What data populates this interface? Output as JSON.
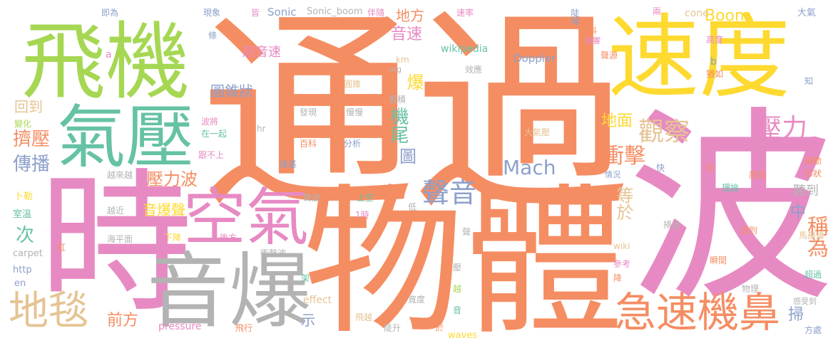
{
  "palette": {
    "orange": "#F58D62",
    "green": "#A6D753",
    "teal": "#66C2A5",
    "yellow": "#FED930",
    "pink": "#E78AC3",
    "gray": "#B3B3B3",
    "blue": "#8DA0CB",
    "tan": "#E5C494"
  },
  "words": [
    {
      "text": "通過",
      "color": "#F58D62"
    },
    {
      "text": "物體",
      "color": "#F58D62"
    },
    {
      "text": "波",
      "color": "#E78AC3"
    },
    {
      "text": "時",
      "color": "#E78AC3"
    },
    {
      "text": "飛機",
      "color": "#A6D753"
    },
    {
      "text": "速度",
      "color": "#FED930"
    },
    {
      "text": "氣壓",
      "color": "#66C2A5"
    },
    {
      "text": "音爆",
      "color": "#B3B3B3"
    },
    {
      "text": "空氣",
      "color": "#E78AC3"
    },
    {
      "text": "地毯",
      "color": "#E5C494"
    },
    {
      "text": "急速機鼻",
      "color": "#F58D62"
    },
    {
      "text": "聲音",
      "color": "#8DA0CB"
    },
    {
      "text": "觀察",
      "color": "#E5C494"
    },
    {
      "text": "壓力",
      "color": "#E78AC3"
    },
    {
      "text": "衝擊",
      "color": "#F58D62"
    },
    {
      "text": "地面",
      "color": "#FED930"
    },
    {
      "text": "機尾",
      "color": "#66C2A5"
    },
    {
      "text": "Mach",
      "color": "#8DA0CB"
    },
    {
      "text": "壓力波",
      "color": "#F58D62"
    },
    {
      "text": "等於",
      "color": "#E5C494"
    },
    {
      "text": "稱為",
      "color": "#F58D62"
    },
    {
      "text": "傳播",
      "color": "#8DA0CB"
    },
    {
      "text": "擠壓",
      "color": "#F58D62"
    },
    {
      "text": "音速",
      "color": "#E78AC3"
    },
    {
      "text": "爆",
      "color": "#FED930"
    },
    {
      "text": "圖",
      "color": "#8DA0CB"
    },
    {
      "text": "Boom",
      "color": "#FED930"
    },
    {
      "text": "地方",
      "color": "#F58D62"
    },
    {
      "text": "前方",
      "color": "#F58D62"
    },
    {
      "text": "次",
      "color": "#66C2A5"
    },
    {
      "text": "回到",
      "color": "#E5C494"
    },
    {
      "text": "圓錐狀",
      "color": "#8DA0CB"
    },
    {
      "text": "超音速",
      "color": "#E78AC3"
    },
    {
      "text": "音爆聲",
      "color": "#FED930"
    },
    {
      "text": "中",
      "color": "#8DA0CB"
    },
    {
      "text": "聽到",
      "color": "#B3B3B3"
    },
    {
      "text": "掃",
      "color": "#8DA0CB"
    },
    {
      "text": "示",
      "color": "#8DA0CB"
    },
    {
      "text": "馬赫數",
      "color": "#F58D62"
    },
    {
      "text": "Doppler",
      "color": "#8DA0CB"
    },
    {
      "text": "Sonic",
      "color": "#8DA0CB"
    },
    {
      "text": "Sonic_boom",
      "color": "#B3B3B3"
    },
    {
      "text": "wikipedia",
      "color": "#66C2A5"
    },
    {
      "text": "cone",
      "color": "#E5C494"
    },
    {
      "text": "pressure",
      "color": "#E78AC3"
    },
    {
      "text": "effect",
      "color": "#E5C494"
    },
    {
      "text": "waves",
      "color": "#FED930"
    },
    {
      "text": "carpet",
      "color": "#B3B3B3"
    },
    {
      "text": "http",
      "color": "#8DA0CB"
    },
    {
      "text": "en",
      "color": "#8DA0CB"
    },
    {
      "text": "wiki",
      "color": "#E5C494"
    },
    {
      "text": "km",
      "color": "#E5C494"
    },
    {
      "text": "org",
      "color": "#B3B3B3"
    },
    {
      "text": "hr",
      "color": "#B3B3B3"
    },
    {
      "text": "a",
      "color": "#E78AC3"
    },
    {
      "text": "b",
      "color": "#8DA0CB"
    },
    {
      "text": "1時",
      "color": "#E78AC3"
    },
    {
      "text": "大氣",
      "color": "#8DA0CB"
    },
    {
      "text": "大氣壓",
      "color": "#E5C494"
    },
    {
      "text": "即為",
      "color": "#8DA0CB"
    },
    {
      "text": "現象",
      "color": "#8DA0CB"
    },
    {
      "text": "皆",
      "color": "#E78AC3"
    },
    {
      "text": "伴隨",
      "color": "#E78AC3"
    },
    {
      "text": "速率",
      "color": "#E78AC3"
    },
    {
      "text": "兩",
      "color": "#E78AC3"
    },
    {
      "text": "陡降",
      "color": "#8DA0CB"
    },
    {
      "text": "資料",
      "color": "#F58D62"
    },
    {
      "text": "聲響",
      "color": "#E78AC3"
    },
    {
      "text": "高度",
      "color": "#E78AC3"
    },
    {
      "text": "聲源",
      "color": "#F58D62"
    },
    {
      "text": "猶如",
      "color": "#F58D62"
    },
    {
      "text": "知",
      "color": "#8DA0CB"
    },
    {
      "text": "條",
      "color": "#8DA0CB"
    },
    {
      "text": "變化",
      "color": "#A6D753"
    },
    {
      "text": "波將",
      "color": "#E78AC3"
    },
    {
      "text": "在一起",
      "color": "#66C2A5"
    },
    {
      "text": "跟不上",
      "color": "#E78AC3"
    },
    {
      "text": "越來越",
      "color": "#B3B3B3"
    },
    {
      "text": "越近",
      "color": "#B3B3B3"
    },
    {
      "text": "卜勒",
      "color": "#FED930"
    },
    {
      "text": "室溫",
      "color": "#66C2A5"
    },
    {
      "text": "海平面",
      "color": "#B3B3B3"
    },
    {
      "text": "後方",
      "color": "#E78AC3"
    },
    {
      "text": "衝擊波",
      "color": "#B3B3B3"
    },
    {
      "text": "紅",
      "color": "#F58D62"
    },
    {
      "text": "架",
      "color": "#66C2A5"
    },
    {
      "text": "下降",
      "color": "#FED930"
    },
    {
      "text": "飛越",
      "color": "#E5C494"
    },
    {
      "text": "飛行",
      "color": "#F58D62"
    },
    {
      "text": "陡升",
      "color": "#B3B3B3"
    },
    {
      "text": "來自於",
      "color": "#F58D62"
    },
    {
      "text": "音",
      "color": "#66C2A5"
    },
    {
      "text": "越",
      "color": "#A6D753"
    },
    {
      "text": "壓",
      "color": "#B3B3B3"
    },
    {
      "text": "聲",
      "color": "#B3B3B3"
    },
    {
      "text": "寬度",
      "color": "#B3B3B3"
    },
    {
      "text": "聲波",
      "color": "#B3B3B3"
    },
    {
      "text": "上空",
      "color": "#66C2A5"
    },
    {
      "text": "低",
      "color": "#B3B3B3"
    },
    {
      "text": "圓錐",
      "color": "#E5C494"
    },
    {
      "text": "效應",
      "color": "#B3B3B3"
    },
    {
      "text": "累積",
      "color": "#B3B3B3"
    },
    {
      "text": "慢慢",
      "color": "#B3B3B3"
    },
    {
      "text": "發現",
      "color": "#B3B3B3"
    },
    {
      "text": "百科",
      "color": "#F58D62"
    },
    {
      "text": "分析",
      "color": "#8DA0CB"
    },
    {
      "text": "維基",
      "color": "#8DA0CB"
    },
    {
      "text": "情況",
      "color": "#8DA0CB"
    },
    {
      "text": "快",
      "color": "#8DA0CB"
    },
    {
      "text": "前",
      "color": "#F58D62"
    },
    {
      "text": "原因",
      "color": "#F58D62"
    },
    {
      "text": "理論",
      "color": "#66C2A5"
    },
    {
      "text": "運動",
      "color": "#F58D62"
    },
    {
      "text": "形狀",
      "color": "#F58D62"
    },
    {
      "text": "掃過",
      "color": "#B3B3B3"
    },
    {
      "text": "提到",
      "color": "#F58D62"
    },
    {
      "text": "參考",
      "color": "#E78AC3"
    },
    {
      "text": "瞬間",
      "color": "#F58D62"
    },
    {
      "text": "降",
      "color": "#F58D62"
    },
    {
      "text": "馬赫錐",
      "color": "#E5C494"
    },
    {
      "text": "超過",
      "color": "#66C2A5"
    },
    {
      "text": "物理",
      "color": "#B3B3B3"
    },
    {
      "text": "感受到",
      "color": "#B3B3B3"
    },
    {
      "text": "方處",
      "color": "#8DA0CB"
    }
  ]
}
